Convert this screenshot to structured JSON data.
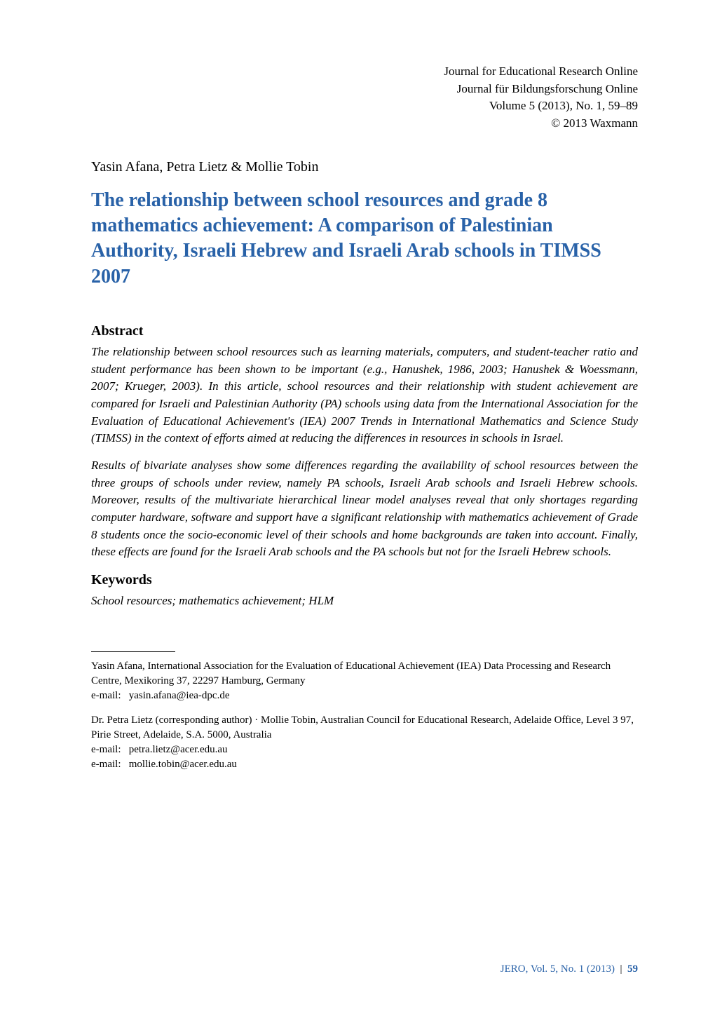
{
  "journal": {
    "line1": "Journal for Educational Research Online",
    "line2": "Journal für Bildungsforschung Online",
    "line3": "Volume 5 (2013), No. 1, 59–89",
    "line4": "© 2013 Waxmann"
  },
  "authors": "Yasin Afana, Petra Lietz & Mollie Tobin",
  "title": "The relationship between school resources and grade 8 mathematics achievement: A comparison of Palestinian Authority, Israeli Hebrew and Israeli Arab schools in TIMSS 2007",
  "abstract": {
    "heading": "Abstract",
    "p1": "The relationship between school resources such as learning materials, computers, and student-teacher ratio and student performance has been shown to be important (e.g., Hanushek, 1986, 2003; Hanushek & Woessmann, 2007; Krueger, 2003). In this article, school resources and their relationship with student achievement are compared for Israeli and Palestinian Authority (PA) schools using data from the International Association for the Evaluation of Educational Achievement's (IEA) 2007 Trends in International Mathematics and Science Study (TIMSS) in the context of efforts aimed at reducing the differences in resources in schools in Israel.",
    "p2": "Results of bivariate analyses show some differences regarding the availability of school resources between the three groups of schools under review, namely PA schools, Israeli Arab schools and Israeli Hebrew schools. Moreover, results of the multivariate hierarchical linear model analyses reveal that only shortages regarding computer hardware, software and support have a significant relationship with mathematics achievement of Grade 8 students once the socio-economic level of their schools and home backgrounds are taken into account. Finally, these effects are found for the Israeli Arab schools and the PA schools but not for the Israeli Hebrew schools."
  },
  "keywords": {
    "heading": "Keywords",
    "text": "School resources; mathematics achievement; HLM"
  },
  "footnotes": {
    "f1": {
      "affil": "Yasin Afana, International Association for the Evaluation of Educational Achievement (IEA) Data Processing and Research Centre, Mexikoring 37, 22297 Hamburg, Germany",
      "email_label": "e-mail:",
      "email": "yasin.afana@iea-dpc.de"
    },
    "f2": {
      "affil": "Dr. Petra Lietz (corresponding author) · Mollie Tobin, Australian Council for Educational Research, Adelaide Office, Level 3 97, Pirie Street, Adelaide, S.A. 5000, Australia",
      "email1_label": "e-mail:",
      "email1": "petra.lietz@acer.edu.au",
      "email2_label": "e-mail:",
      "email2": "mollie.tobin@acer.edu.au"
    }
  },
  "footer": {
    "journal": "JERO, Vol. 5, No. 1 (2013)",
    "sep": "|",
    "page": "59"
  },
  "colors": {
    "accent": "#2962a8",
    "text": "#000000",
    "background": "#ffffff"
  }
}
